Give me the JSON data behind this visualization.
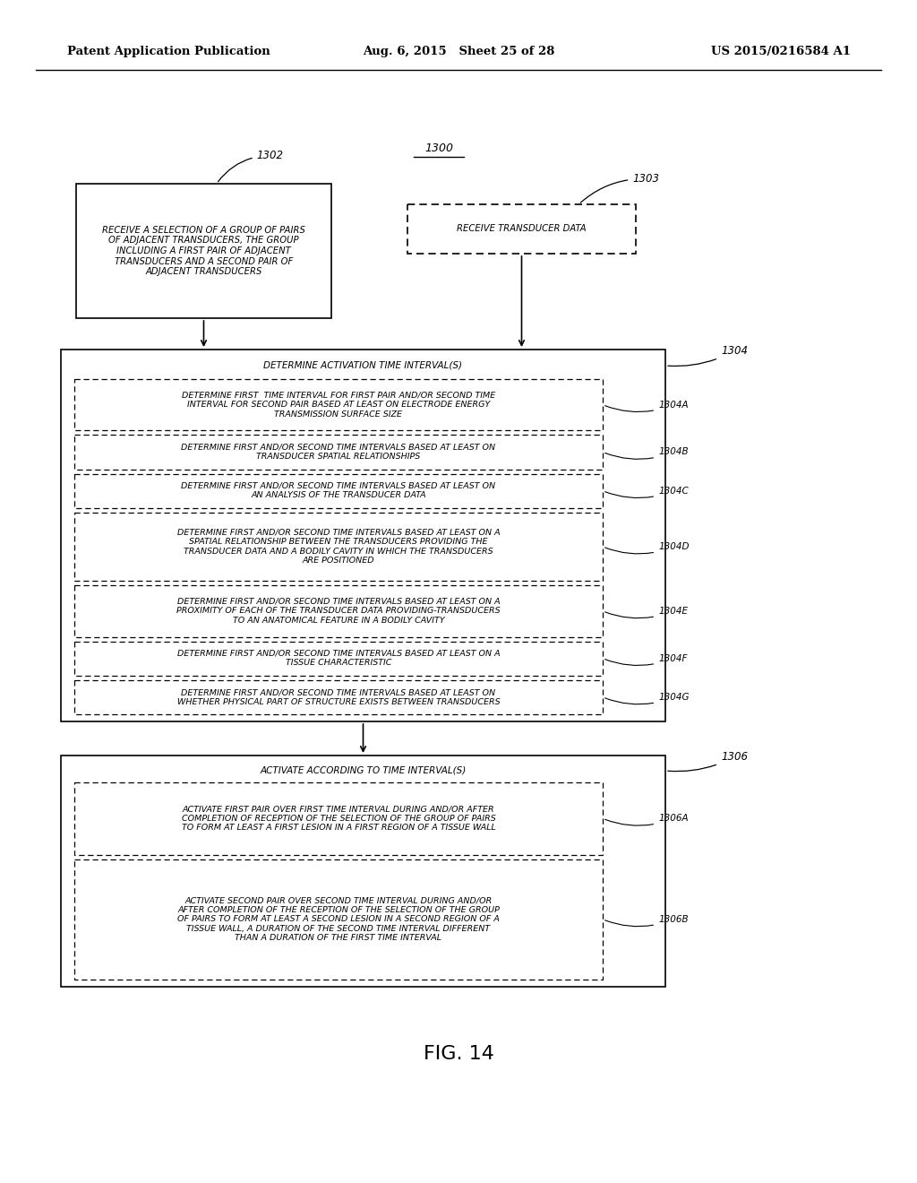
{
  "header_left": "Patent Application Publication",
  "header_center": "Aug. 6, 2015   Sheet 25 of 28",
  "header_right": "US 2015/0216584 A1",
  "figure_label": "FIG. 14",
  "bg_color": "#ffffff",
  "sub_boxes_1304": [
    [
      "1304A",
      "DETERMINE FIRST  TIME INTERVAL FOR FIRST PAIR AND/OR SECOND TIME\nINTERVAL FOR SECOND PAIR BASED AT LEAST ON ELECTRODE ENERGY\nTRANSMISSION SURFACE SIZE",
      3
    ],
    [
      "1304B",
      "DETERMINE FIRST AND/OR SECOND TIME INTERVALS BASED AT LEAST ON\nTRANSDUCER SPATIAL RELATIONSHIPS",
      2
    ],
    [
      "1304C",
      "DETERMINE FIRST AND/OR SECOND TIME INTERVALS BASED AT LEAST ON\nAN ANALYSIS OF THE TRANSDUCER DATA",
      2
    ],
    [
      "1304D",
      "DETERMINE FIRST AND/OR SECOND TIME INTERVALS BASED AT LEAST ON A\nSPATIAL RELATIONSHIP BETWEEN THE TRANSDUCERS PROVIDING THE\nTRANSDUCER DATA AND A BODILY CAVITY IN WHICH THE TRANSDUCERS\nARE POSITIONED",
      4
    ],
    [
      "1304E",
      "DETERMINE FIRST AND/OR SECOND TIME INTERVALS BASED AT LEAST ON A\nPROXIMITY OF EACH OF THE TRANSDUCER DATA PROVIDING-TRANSDUCERS\nTO AN ANATOMICAL FEATURE IN A BODILY CAVITY",
      3
    ],
    [
      "1304F",
      "DETERMINE FIRST AND/OR SECOND TIME INTERVALS BASED AT LEAST ON A\nTISSUE CHARACTERISTIC",
      2
    ],
    [
      "1304G",
      "DETERMINE FIRST AND/OR SECOND TIME INTERVALS BASED AT LEAST ON\nWHETHER PHYSICAL PART OF STRUCTURE EXISTS BETWEEN TRANSDUCERS",
      2
    ]
  ],
  "sub_boxes_1306": [
    [
      "1306A",
      "ACTIVATE FIRST PAIR OVER FIRST TIME INTERVAL DURING AND/OR AFTER\nCOMPLETION OF RECEPTION OF THE SELECTION OF THE GROUP OF PAIRS\nTO FORM AT LEAST A FIRST LESION IN A FIRST REGION OF A TISSUE WALL",
      3
    ],
    [
      "1306B",
      "ACTIVATE SECOND PAIR OVER SECOND TIME INTERVAL DURING AND/OR\nAFTER COMPLETION OF THE RECEPTION OF THE SELECTION OF THE GROUP\nOF PAIRS TO FORM AT LEAST A SECOND LESION IN A SECOND REGION OF A\nTISSUE WALL, A DURATION OF THE SECOND TIME INTERVAL DIFFERENT\nTHAN A DURATION OF THE FIRST TIME INTERVAL",
      5
    ]
  ]
}
